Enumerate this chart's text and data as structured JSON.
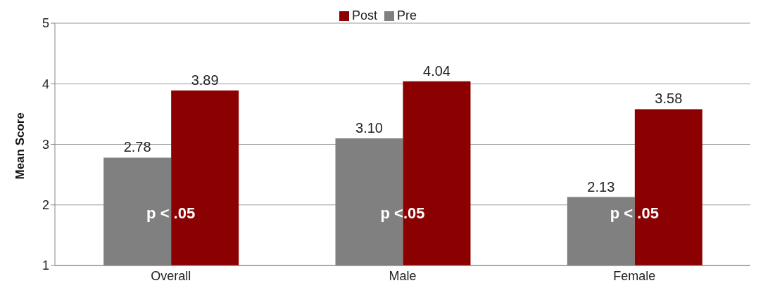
{
  "chart_data": {
    "type": "bar",
    "categories": [
      "Overall",
      "Male",
      "Female"
    ],
    "series": [
      {
        "name": "Pre",
        "color": "#808080",
        "values": [
          2.78,
          3.1,
          2.13
        ],
        "value_labels": [
          "2.78",
          "3.10",
          "2.13"
        ]
      },
      {
        "name": "Post",
        "color": "#8b0000",
        "values": [
          3.89,
          4.04,
          3.58
        ],
        "value_labels": [
          "3.89",
          "4.04",
          "3.58"
        ]
      }
    ],
    "ylabel": "Mean Score",
    "ylim": [
      1,
      5
    ],
    "yticks": [
      1,
      2,
      3,
      4,
      5
    ],
    "grid": "y",
    "legend": "top",
    "annotations": [
      {
        "text": "p < .05",
        "x": "Overall",
        "y": 1.85
      },
      {
        "text": "p <.05",
        "x": "Male",
        "y": 1.85
      },
      {
        "text": "p < .05",
        "x": "Female",
        "y": 1.85
      }
    ]
  }
}
